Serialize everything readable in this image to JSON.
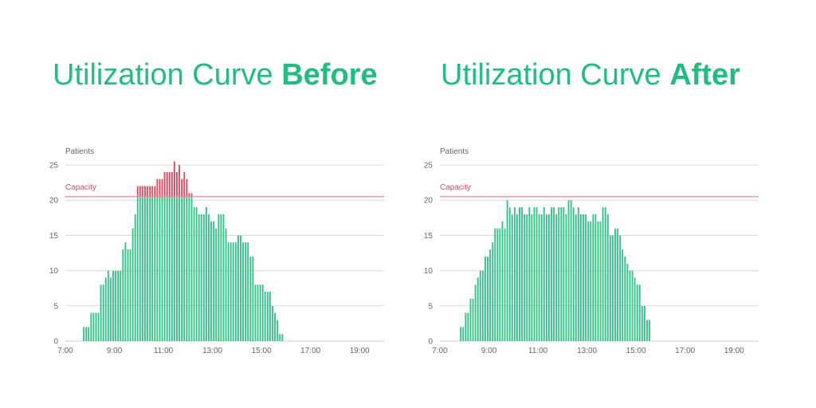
{
  "titles": [
    {
      "prefix": "Utilization Curve ",
      "bold": "Before"
    },
    {
      "prefix": "Utilization Curve ",
      "bold": "After"
    }
  ],
  "colors": {
    "title": "#1fbe7f",
    "bar": "#2ec485",
    "over_capacity": "#e2475e",
    "capacity_line": "#e58a96",
    "capacity_label": "#e2475e",
    "grid": "#d8d8d8"
  },
  "chart_data": [
    {
      "type": "bar",
      "title": "Utilization Curve Before",
      "ylabel": "Patients",
      "capacity": {
        "label": "Capacity",
        "value": 20.5
      },
      "ylim": [
        0,
        25
      ],
      "yticks": [
        0,
        5,
        10,
        15,
        20,
        25
      ],
      "xlim": [
        7,
        20
      ],
      "xticks": [
        {
          "value": 7,
          "label": "7:00"
        },
        {
          "value": 9,
          "label": "9:00"
        },
        {
          "value": 11,
          "label": "11:00"
        },
        {
          "value": 13,
          "label": "13:00"
        },
        {
          "value": 15,
          "label": "15:00"
        },
        {
          "value": 17,
          "label": "17:00"
        },
        {
          "value": 19,
          "label": "19:00"
        }
      ],
      "grid": true,
      "x_start": 7.75,
      "x_step": 0.1,
      "values": [
        2,
        2,
        2,
        4,
        4,
        4,
        4,
        8,
        8,
        9,
        10,
        9,
        10,
        10,
        10,
        10,
        13,
        14,
        13,
        13,
        16,
        18,
        22,
        22,
        22,
        22,
        22,
        22,
        22,
        22,
        23,
        23,
        23,
        24,
        24,
        24,
        24,
        25.5,
        24,
        25,
        23,
        24,
        23,
        21,
        21,
        19,
        19,
        18,
        18,
        18,
        19,
        18,
        17,
        17,
        16,
        18,
        18,
        18,
        16,
        14,
        14,
        14,
        14,
        15,
        15,
        14,
        14,
        14,
        12,
        12,
        8,
        8,
        8,
        8,
        7,
        7,
        7,
        5,
        4,
        3,
        1,
        1
      ]
    },
    {
      "type": "bar",
      "title": "Utilization Curve After",
      "ylabel": "Patients",
      "capacity": {
        "label": "Capacity",
        "value": 20.5
      },
      "ylim": [
        0,
        25
      ],
      "yticks": [
        0,
        5,
        10,
        15,
        20,
        25
      ],
      "xlim": [
        7,
        20
      ],
      "xticks": [
        {
          "value": 7,
          "label": "7:00"
        },
        {
          "value": 9,
          "label": "9:00"
        },
        {
          "value": 11,
          "label": "11:00"
        },
        {
          "value": 13,
          "label": "13:00"
        },
        {
          "value": 15,
          "label": "15:00"
        },
        {
          "value": 17,
          "label": "17:00"
        },
        {
          "value": 19,
          "label": "19:00"
        }
      ],
      "grid": true,
      "x_start": 7.85,
      "x_step": 0.1,
      "values": [
        2,
        2,
        4,
        4,
        6,
        6,
        8,
        9,
        10,
        10,
        12,
        12,
        13,
        14,
        16,
        16,
        16,
        17,
        16,
        20,
        19,
        18,
        19,
        18,
        19,
        19,
        18,
        18,
        19,
        18,
        19,
        19,
        18,
        18,
        19,
        18,
        18,
        19,
        19,
        18,
        19,
        19,
        19,
        18,
        20,
        20,
        19,
        18,
        19,
        18,
        18,
        18,
        17,
        17,
        18,
        18,
        17,
        17,
        19,
        19,
        18,
        15,
        15,
        16,
        16,
        15,
        13,
        12,
        11,
        10,
        10,
        9,
        8,
        8,
        5,
        5,
        3,
        3
      ]
    }
  ]
}
